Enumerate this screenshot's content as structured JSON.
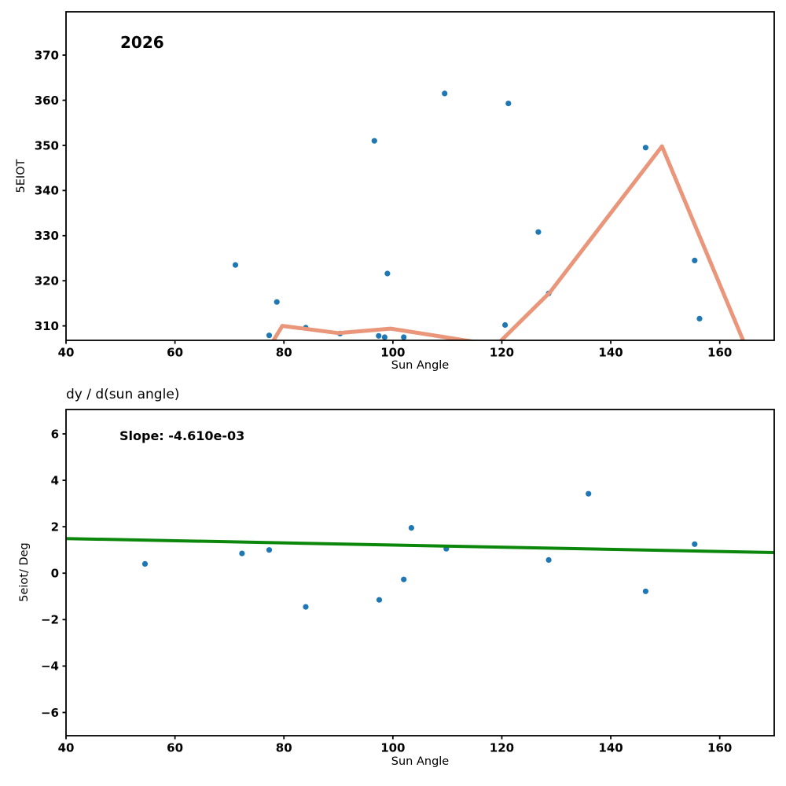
{
  "figure": {
    "background": "#ffffff"
  },
  "chart_data": [
    {
      "type": "scatter",
      "annotation": "2026",
      "xlabel": "Sun Angle",
      "ylabel": "5EIOT",
      "xlim": [
        40,
        170
      ],
      "ylim": [
        306.8,
        379.6
      ],
      "xticks": [
        40,
        60,
        80,
        100,
        120,
        140,
        160
      ],
      "yticks": [
        310,
        320,
        330,
        340,
        350,
        360,
        370
      ],
      "grid": false,
      "scatter": {
        "name": "5eiot-scatter-point",
        "color": "#1f77b4",
        "points": [
          [
            71.1,
            323.5
          ],
          [
            77.3,
            307.9
          ],
          [
            78.7,
            315.3
          ],
          [
            84.0,
            309.6
          ],
          [
            90.3,
            308.3
          ],
          [
            96.6,
            351.0
          ],
          [
            97.4,
            307.8
          ],
          [
            98.5,
            307.5
          ],
          [
            99.0,
            321.6
          ],
          [
            102.0,
            307.5
          ],
          [
            109.5,
            361.5
          ],
          [
            120.6,
            310.2
          ],
          [
            121.2,
            359.3
          ],
          [
            126.7,
            330.8
          ],
          [
            128.6,
            317.2
          ],
          [
            146.4,
            349.5
          ],
          [
            155.4,
            324.5
          ],
          [
            156.3,
            311.6
          ]
        ]
      },
      "line": {
        "name": "smoothed-fit-line",
        "color": "#e9967a",
        "width": 5,
        "points": [
          [
            77.8,
            306.2
          ],
          [
            79.7,
            310.0
          ],
          [
            90.0,
            308.4
          ],
          [
            99.6,
            309.4
          ],
          [
            119.0,
            305.7
          ],
          [
            128.8,
            317.4
          ],
          [
            149.4,
            349.8
          ],
          [
            164.6,
            305.9
          ]
        ]
      }
    },
    {
      "type": "scatter",
      "title": "dy / d(sun angle)",
      "annotation": "Slope: -4.610e-03",
      "xlabel": "Sun Angle",
      "ylabel": "5eiot/ Deg",
      "xlim": [
        40,
        170
      ],
      "ylim": [
        -7,
        7.05
      ],
      "xticks": [
        40,
        60,
        80,
        100,
        120,
        140,
        160
      ],
      "yticks": [
        -6,
        -4,
        -2,
        0,
        2,
        4,
        6
      ],
      "grid": false,
      "scatter": {
        "name": "derivative-scatter-point",
        "color": "#1f77b4",
        "points": [
          [
            54.5,
            0.4
          ],
          [
            72.3,
            0.85
          ],
          [
            77.3,
            1.0
          ],
          [
            84.0,
            -1.45
          ],
          [
            97.5,
            -1.15
          ],
          [
            102.0,
            -0.27
          ],
          [
            103.4,
            1.95
          ],
          [
            109.8,
            1.05
          ],
          [
            128.6,
            0.57
          ],
          [
            135.9,
            3.42
          ],
          [
            146.4,
            -0.78
          ],
          [
            155.4,
            1.25
          ]
        ]
      },
      "line": {
        "name": "linear-trend-line",
        "color": "#0b870b",
        "width": 4,
        "points": [
          [
            40,
            1.49
          ],
          [
            170,
            0.89
          ]
        ]
      }
    }
  ]
}
